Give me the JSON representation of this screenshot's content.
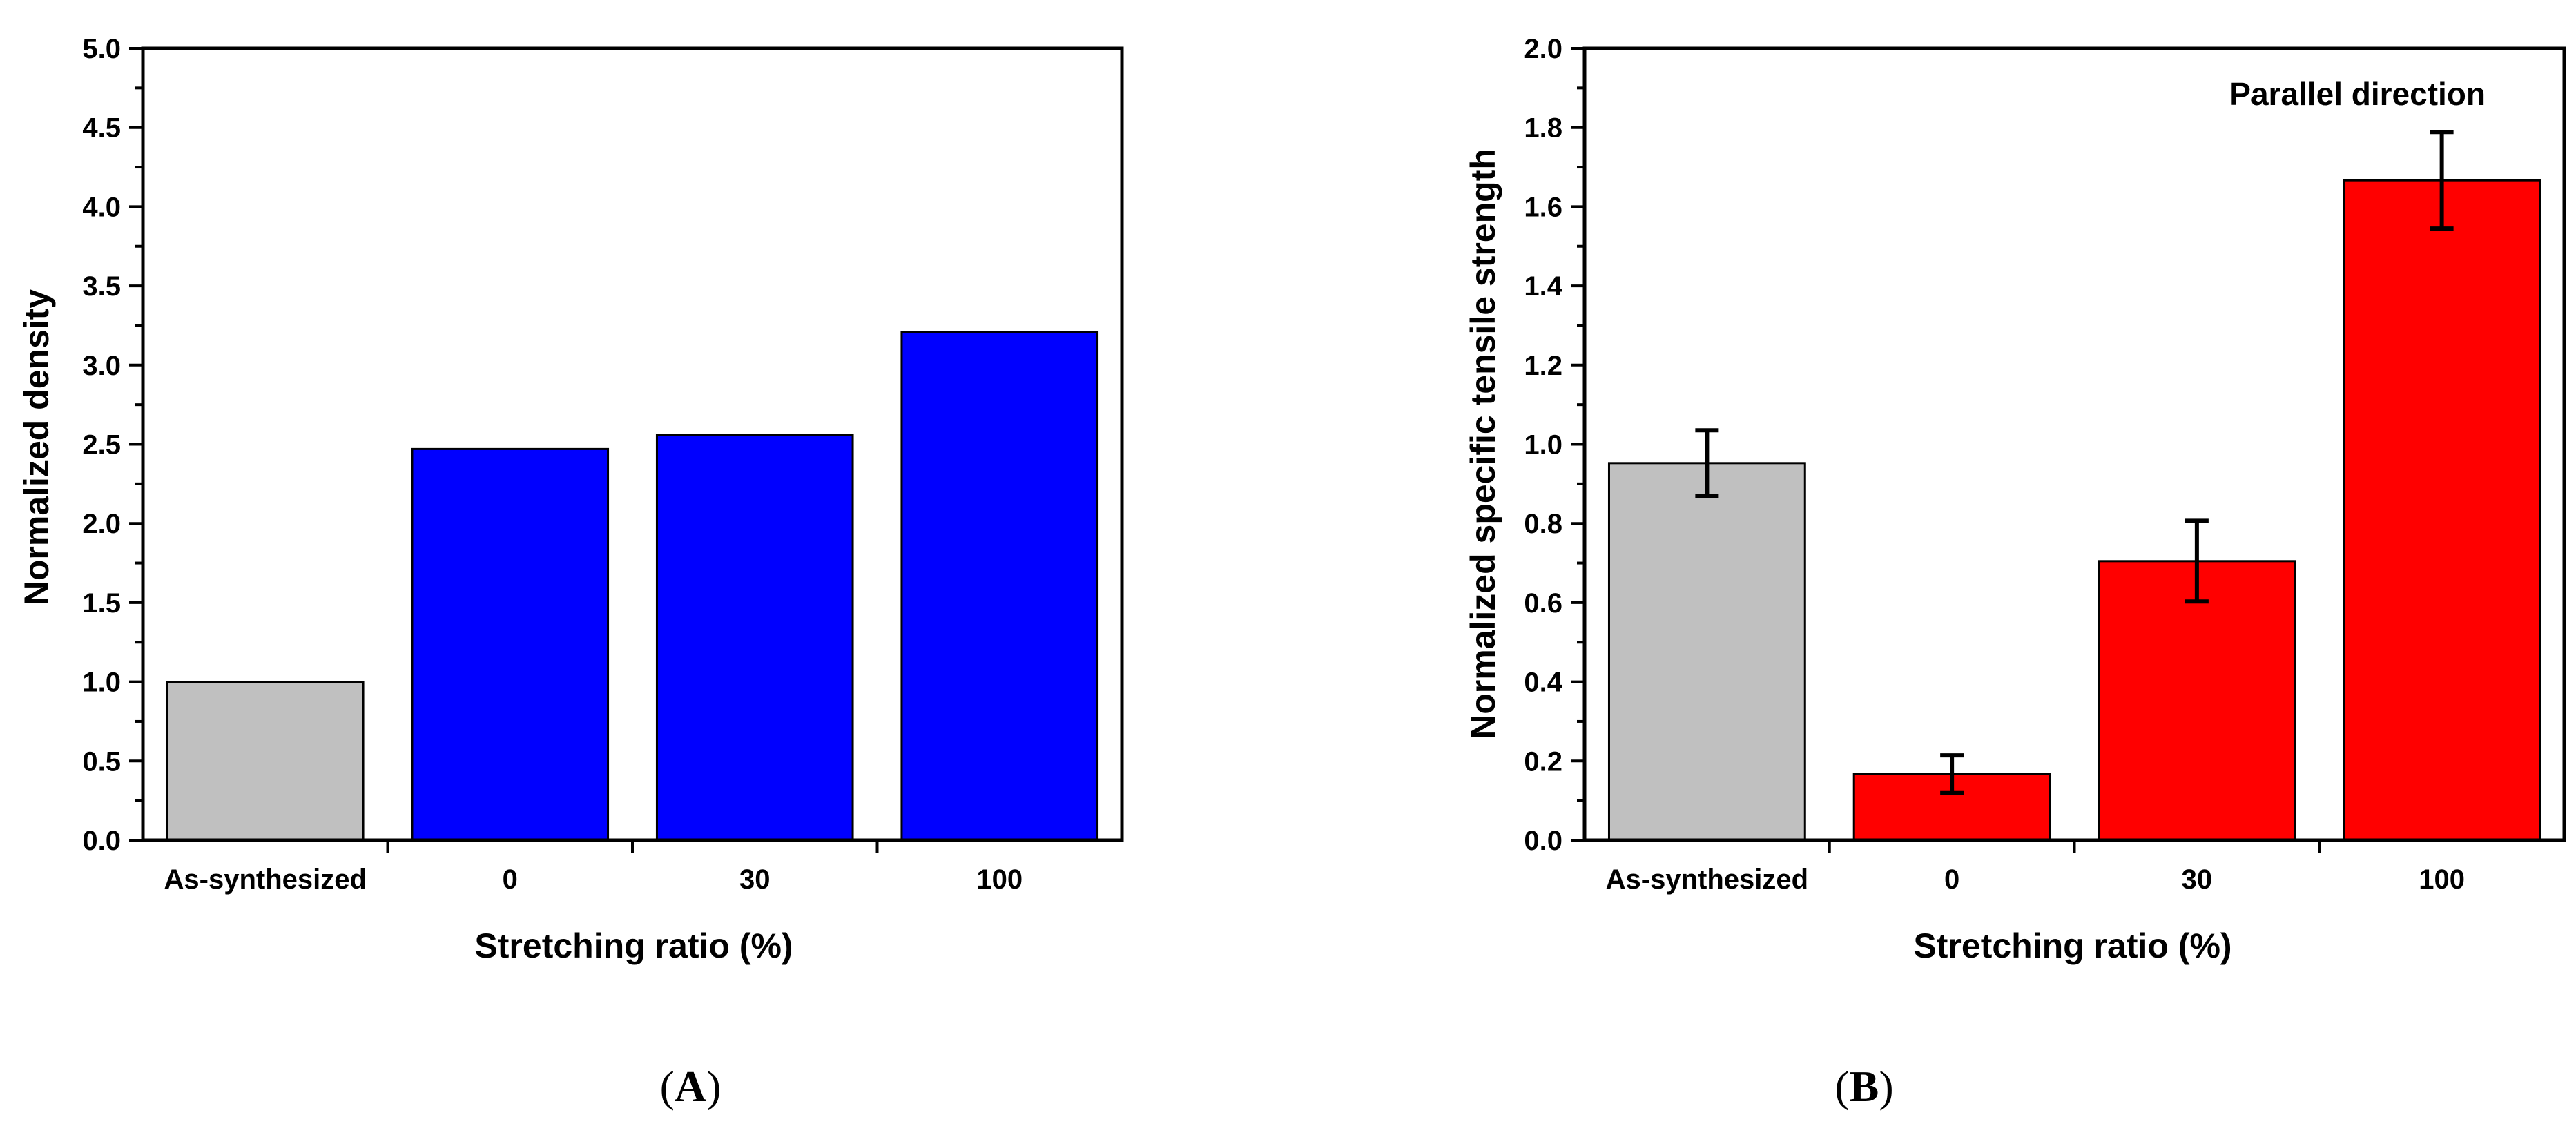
{
  "chart_data": [
    {
      "type": "bar",
      "panel_label": "A",
      "title": "",
      "categories": [
        "As-synthesized",
        "0",
        "30",
        "100"
      ],
      "values": [
        1.0,
        2.47,
        2.56,
        3.21
      ],
      "bar_colors": [
        "#c0c0c0",
        "#0000ff",
        "#0000ff",
        "#0000ff"
      ],
      "xlabel": "Stretching ratio (%)",
      "ylabel": "Normalized density",
      "ylim": [
        0.0,
        5.0
      ],
      "yticks": [
        "0.0",
        "0.5",
        "1.0",
        "1.5",
        "2.0",
        "2.5",
        "3.0",
        "3.5",
        "4.0",
        "4.5",
        "5.0"
      ],
      "grid": false
    },
    {
      "type": "bar",
      "panel_label": "B",
      "title": "",
      "annotation": "Parallel direction",
      "categories": [
        "As-synthesized",
        "0",
        "30",
        "100"
      ],
      "values": [
        1.0,
        0.175,
        0.74,
        1.75
      ],
      "errors": [
        0.087,
        0.05,
        0.107,
        0.128
      ],
      "bar_colors": [
        "#c0c0c0",
        "#ff0000",
        "#ff0000",
        "#ff0000"
      ],
      "xlabel": "Stretching ratio (%)",
      "ylabel": "Normalized specific tensile strength",
      "ylim": [
        0.0,
        2.1
      ],
      "yticks": [
        "0.0",
        "0.2",
        "0.4",
        "0.6",
        "0.8",
        "1.0",
        "1.2",
        "1.4",
        "1.6",
        "1.8",
        "2.0"
      ],
      "grid": false
    }
  ]
}
